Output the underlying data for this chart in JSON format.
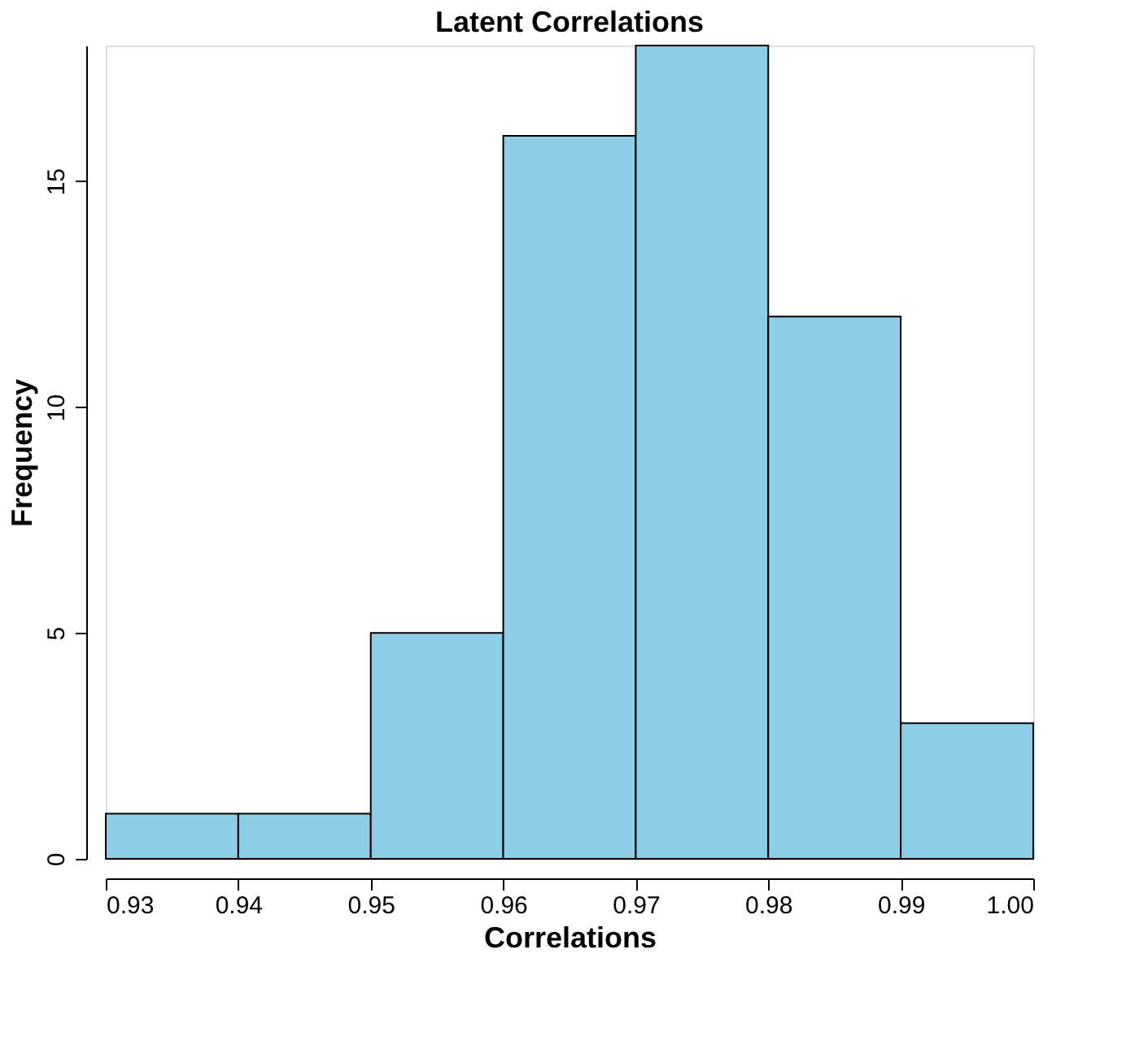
{
  "chart_data": {
    "type": "histogram",
    "title": "Latent Correlations",
    "xlabel": "Correlations",
    "ylabel": "Frequency",
    "bins": [
      0.93,
      0.94,
      0.95,
      0.96,
      0.97,
      0.98,
      0.99,
      1.0
    ],
    "values": [
      1,
      1,
      5,
      16,
      18,
      12,
      3
    ],
    "color": "#8ecde8",
    "xlim": [
      0.93,
      1.0
    ],
    "xticks": [
      0.93,
      0.94,
      0.95,
      0.96,
      0.97,
      0.98,
      0.99,
      {
        "value": 1.0,
        "label": "1.00"
      }
    ],
    "ylim": [
      0,
      18
    ],
    "yticks": [
      0,
      5,
      10,
      15
    ],
    "grid": false
  }
}
